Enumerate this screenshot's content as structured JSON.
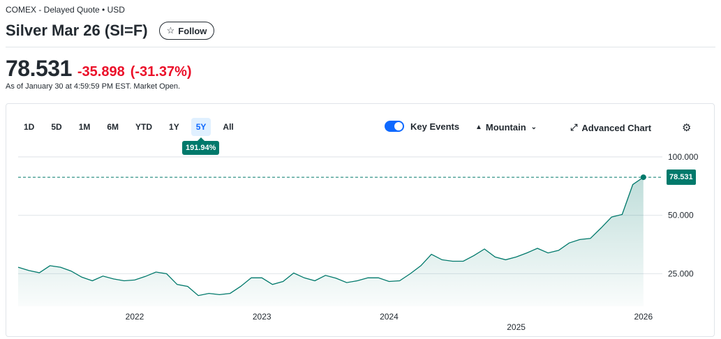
{
  "header": {
    "exchange": "COMEX - Delayed Quote • USD",
    "title": "Silver Mar 26 (SI=F)",
    "follow_label": "Follow",
    "follow_icon": "star-icon"
  },
  "quote": {
    "price": "78.531",
    "change": "-35.898",
    "change_pct": "(-31.37%)",
    "as_of": "As of January 30 at 4:59:59 PM EST. Market Open.",
    "negative_color": "#eb0f29"
  },
  "toolbar": {
    "ranges": [
      "1D",
      "5D",
      "1M",
      "6M",
      "YTD",
      "1Y",
      "5Y",
      "All"
    ],
    "active_range": "5Y",
    "range_performance": "191.94%",
    "key_events_label": "Key Events",
    "key_events_on": true,
    "chart_type_label": "Mountain",
    "advanced_label": "Advanced Chart",
    "settings_icon": "gear-icon"
  },
  "chart_data": {
    "type": "area",
    "title": "",
    "xlabel": "",
    "ylabel": "",
    "x_tick_labels": [
      "2022",
      "2023",
      "2024",
      "2025",
      "2026"
    ],
    "y_tick_labels": [
      "100.000",
      "50.000",
      "25.000"
    ],
    "y_ticks": [
      100,
      50,
      25
    ],
    "ylim": [
      17,
      105
    ],
    "y_scale": "log",
    "last_value": 78.531,
    "last_value_label": "78.531",
    "line_color": "#00796b",
    "grid": true,
    "series": [
      {
        "x": [
          "2021-02",
          "2021-03",
          "2021-04",
          "2021-05",
          "2021-06",
          "2021-07",
          "2021-08",
          "2021-09",
          "2021-10",
          "2021-11",
          "2021-12",
          "2022-01",
          "2022-02",
          "2022-03",
          "2022-04",
          "2022-05",
          "2022-06",
          "2022-07",
          "2022-08",
          "2022-09",
          "2022-10",
          "2022-11",
          "2022-12",
          "2023-01",
          "2023-02",
          "2023-03",
          "2023-04",
          "2023-05",
          "2023-06",
          "2023-07",
          "2023-08",
          "2023-09",
          "2023-10",
          "2023-11",
          "2023-12",
          "2024-01",
          "2024-02",
          "2024-03",
          "2024-04",
          "2024-05",
          "2024-06",
          "2024-07",
          "2024-08",
          "2024-09",
          "2024-10",
          "2024-11",
          "2024-12",
          "2025-01",
          "2025-02",
          "2025-03",
          "2025-04",
          "2025-05",
          "2025-06",
          "2025-07",
          "2025-08",
          "2025-09",
          "2025-10",
          "2025-11",
          "2025-12",
          "2026-01"
        ],
        "values": [
          27.0,
          26.0,
          25.3,
          27.5,
          27.0,
          25.8,
          24.0,
          23.0,
          24.3,
          23.5,
          23.0,
          23.2,
          24.2,
          25.5,
          25.0,
          22.0,
          21.5,
          19.3,
          19.8,
          19.5,
          19.8,
          21.5,
          23.8,
          23.8,
          22.0,
          22.8,
          25.2,
          23.8,
          23.0,
          24.5,
          23.7,
          22.5,
          23.0,
          23.8,
          23.8,
          22.8,
          23.0,
          25.0,
          27.5,
          31.5,
          29.5,
          29.0,
          29.0,
          31.0,
          33.5,
          30.5,
          29.5,
          30.5,
          32.0,
          33.8,
          32.0,
          33.0,
          36.0,
          37.5,
          38.0,
          43.0,
          49.0,
          50.5,
          72.0,
          78.531
        ]
      }
    ]
  }
}
